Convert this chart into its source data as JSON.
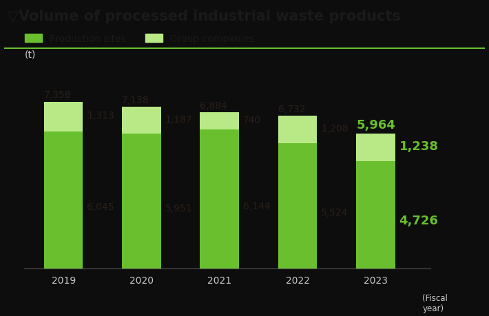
{
  "title": "▽Volume of processed industrial waste products",
  "ylabel": "(t)",
  "xlabel_suffix": "(Fiscal\nyear)",
  "years": [
    "2019",
    "2020",
    "2021",
    "2022",
    "2023"
  ],
  "production_sites": [
    6045,
    5951,
    6144,
    5524,
    4726
  ],
  "group_companies": [
    1313,
    1187,
    740,
    1208,
    1238
  ],
  "totals": [
    7358,
    7138,
    6884,
    6732,
    5964
  ],
  "bar_color_production": "#6abf2e",
  "bar_color_group": "#b8e986",
  "legend_label_production": "Production sites",
  "legend_label_group": "Group companies",
  "title_color": "#1a1a1a",
  "background_color": "#0d0d0d",
  "text_color_normal": "#2a1f1a",
  "highlight_year_index": 4,
  "highlight_color": "#6abf2e",
  "bar_width": 0.5,
  "ylim": [
    0,
    8800
  ],
  "title_fontsize": 15,
  "axis_label_fontsize": 10,
  "legend_fontsize": 10,
  "value_fontsize": 10,
  "highlight_value_fontsize": 13,
  "green_line_color": "#6abf2e"
}
